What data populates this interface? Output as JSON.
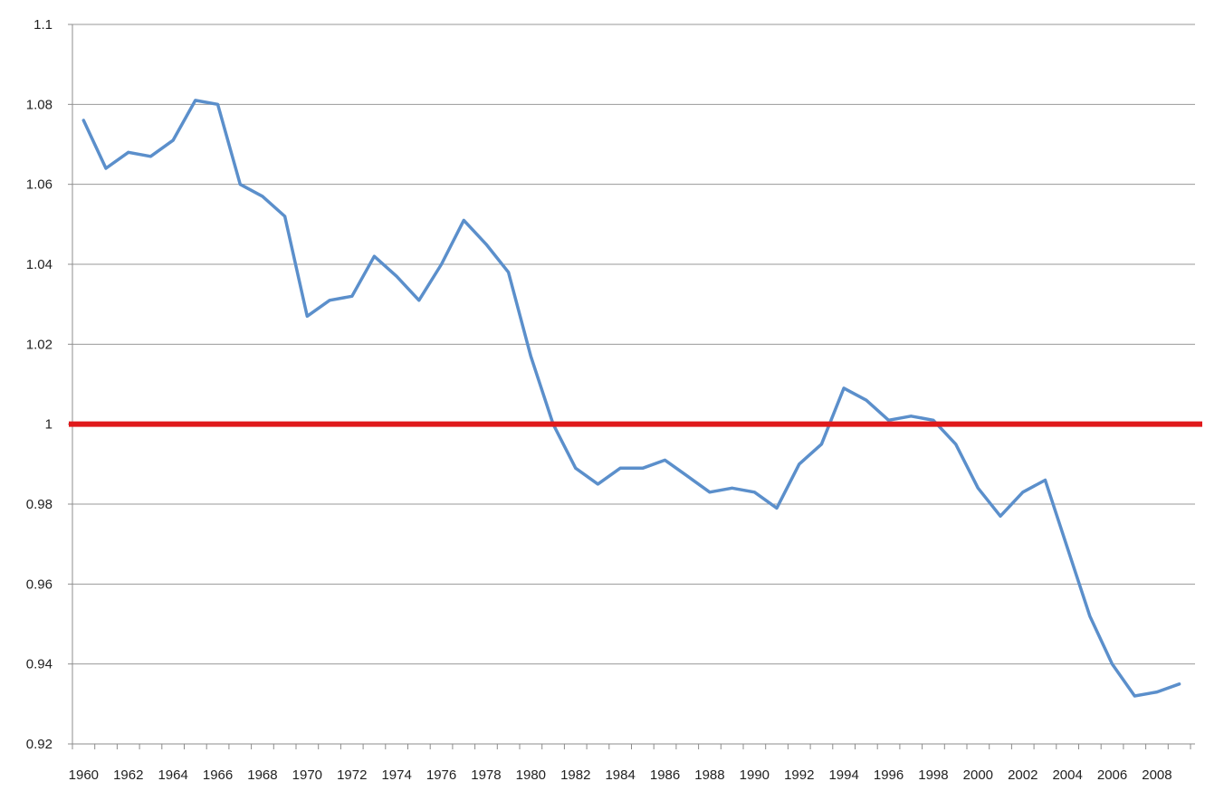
{
  "chart_data": {
    "type": "line",
    "title": "",
    "xlabel": "",
    "ylabel": "",
    "ylim": [
      0.92,
      1.1
    ],
    "xlim": [
      1960,
      2009
    ],
    "y_ticks": [
      "0.92",
      "0.94",
      "0.96",
      "0.98",
      "1",
      "1.02",
      "1.04",
      "1.06",
      "1.08",
      "1.1"
    ],
    "x_tick_labels": [
      "1960",
      "1962",
      "1964",
      "1966",
      "1968",
      "1970",
      "1972",
      "1974",
      "1976",
      "1978",
      "1980",
      "1982",
      "1984",
      "1986",
      "1988",
      "1990",
      "1992",
      "1994",
      "1996",
      "1998",
      "2000",
      "2002",
      "2004",
      "2006",
      "2008"
    ],
    "grid": "horizontal",
    "legend": "none",
    "x": [
      1960,
      1961,
      1962,
      1963,
      1964,
      1965,
      1966,
      1967,
      1968,
      1969,
      1970,
      1971,
      1972,
      1973,
      1974,
      1975,
      1976,
      1977,
      1978,
      1979,
      1980,
      1981,
      1982,
      1983,
      1984,
      1985,
      1986,
      1987,
      1988,
      1989,
      1990,
      1991,
      1992,
      1993,
      1994,
      1995,
      1996,
      1997,
      1998,
      1999,
      2000,
      2001,
      2002,
      2003,
      2004,
      2005,
      2006,
      2007,
      2008,
      2009
    ],
    "series": [
      {
        "color": "#5b8fcb",
        "values": [
          1.076,
          1.064,
          1.068,
          1.067,
          1.071,
          1.081,
          1.08,
          1.06,
          1.057,
          1.052,
          1.027,
          1.031,
          1.032,
          1.042,
          1.037,
          1.031,
          1.04,
          1.051,
          1.045,
          1.038,
          1.017,
          1.0,
          0.989,
          0.985,
          0.989,
          0.989,
          0.991,
          0.987,
          0.983,
          0.984,
          0.983,
          0.979,
          0.99,
          0.995,
          1.009,
          1.006,
          1.001,
          1.002,
          1.001,
          0.995,
          0.984,
          0.977,
          0.983,
          0.986,
          0.969,
          0.952,
          0.94,
          0.932,
          0.933,
          0.935
        ]
      }
    ],
    "reference_line": {
      "value": 1.0,
      "color": "#e0191b"
    },
    "colors": {
      "grid": "#9a9a9a",
      "axis": "#8c8c8c",
      "text": "#222222"
    }
  }
}
